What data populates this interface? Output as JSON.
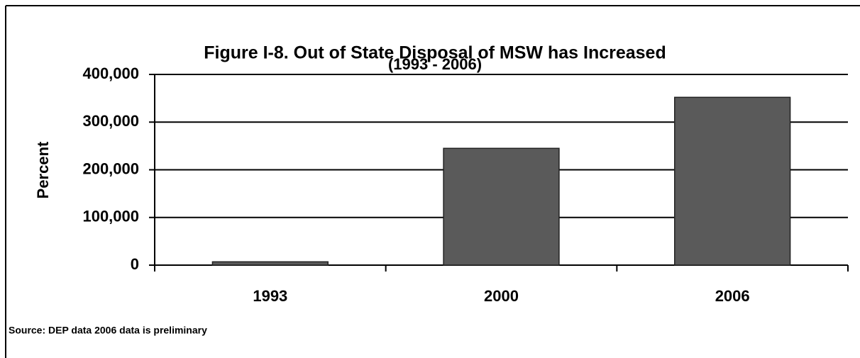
{
  "chart_data": {
    "type": "bar",
    "title": "Figure I-8.  Out of State Disposal of MSW has Increased",
    "subtitle": "(1993 - 2006)",
    "y_label": "Percent",
    "source": "Source:  DEP data 2006 data is preliminary",
    "categories": [
      "1993",
      "2000",
      "2006"
    ],
    "values": [
      7000,
      245000,
      352000
    ],
    "color": "#5a5a5a",
    "ylim": [
      0,
      400000
    ],
    "yticks": [
      0,
      {
        "value": 100000,
        "label": "100,000"
      },
      {
        "value": 200000,
        "label": "200,000"
      },
      {
        "value": 300000,
        "label": "300,000"
      },
      {
        "value": 400000,
        "label": "400,000"
      }
    ],
    "grid": true
  }
}
